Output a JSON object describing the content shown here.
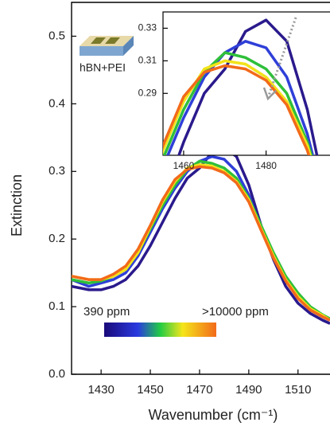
{
  "chart_data": {
    "type": "line",
    "x_label": "Wavenumber (cm⁻¹)",
    "y_label": "Extinction",
    "x": [
      1418,
      1425,
      1430,
      1435,
      1440,
      1445,
      1450,
      1455,
      1460,
      1465,
      1470,
      1475,
      1480,
      1485,
      1490,
      1495,
      1500,
      1505,
      1510,
      1515,
      1520,
      1523
    ],
    "series": [
      {
        "color": "#2a1a8c",
        "values": [
          0.13,
          0.125,
          0.125,
          0.13,
          0.14,
          0.16,
          0.19,
          0.225,
          0.26,
          0.29,
          0.305,
          0.328,
          0.335,
          0.322,
          0.28,
          0.22,
          0.17,
          0.13,
          0.105,
          0.09,
          0.08,
          0.075
        ]
      },
      {
        "color": "#2f3fd8",
        "values": [
          0.14,
          0.13,
          0.135,
          0.14,
          0.15,
          0.175,
          0.21,
          0.245,
          0.275,
          0.3,
          0.315,
          0.322,
          0.318,
          0.3,
          0.265,
          0.215,
          0.175,
          0.14,
          0.115,
          0.095,
          0.085,
          0.08
        ]
      },
      {
        "color": "#2fbf3a",
        "values": [
          0.14,
          0.135,
          0.138,
          0.145,
          0.155,
          0.18,
          0.215,
          0.25,
          0.28,
          0.303,
          0.315,
          0.312,
          0.305,
          0.29,
          0.26,
          0.22,
          0.18,
          0.145,
          0.12,
          0.1,
          0.088,
          0.082
        ]
      },
      {
        "color": "#f2e21a",
        "values": [
          0.145,
          0.14,
          0.14,
          0.145,
          0.155,
          0.18,
          0.218,
          0.255,
          0.285,
          0.305,
          0.31,
          0.308,
          0.3,
          0.285,
          0.258,
          0.215,
          0.175,
          0.14,
          0.115,
          0.097,
          0.087,
          0.08
        ]
      },
      {
        "color": "#f26a1a",
        "values": [
          0.145,
          0.14,
          0.14,
          0.148,
          0.16,
          0.185,
          0.22,
          0.258,
          0.288,
          0.303,
          0.307,
          0.305,
          0.298,
          0.283,
          0.255,
          0.213,
          0.172,
          0.138,
          0.112,
          0.095,
          0.085,
          0.08
        ]
      }
    ],
    "xlim": [
      1418,
      1523
    ],
    "ylim": [
      0,
      0.55
    ],
    "xticks": [
      1430,
      1450,
      1470,
      1490,
      1510
    ],
    "yticks": [
      {
        "value": 0,
        "label": "0.0"
      },
      0.1,
      0.2,
      0.3,
      0.4,
      0.5
    ],
    "colorbar_labels": [
      "390 ppm",
      ">10000 ppm"
    ],
    "device_label": "hBN+PEI",
    "inset": {
      "xlim": [
        1455,
        1495.5
      ],
      "ylim": [
        0.252,
        0.34
      ],
      "xticks": [
        1460,
        1480
      ],
      "yticks": [
        0.29,
        0.31,
        0.33
      ]
    }
  }
}
